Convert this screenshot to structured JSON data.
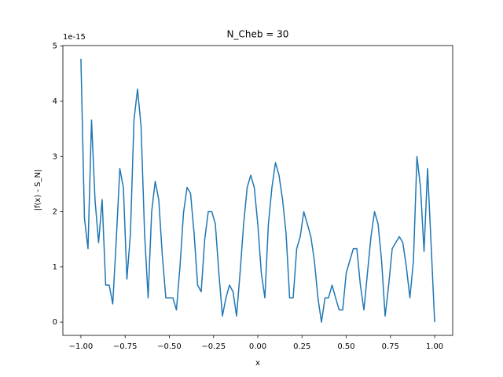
{
  "chart_data": {
    "type": "line",
    "title": "N_Cheb = 30",
    "x_label": "x",
    "y_label": "|f(x) - S_N|",
    "y_offset_text": "1e-15",
    "color": "#1f77b4",
    "x": [
      -1.0,
      -0.98,
      -0.96,
      -0.94,
      -0.92,
      -0.9,
      -0.88,
      -0.86,
      -0.84,
      -0.82,
      -0.8,
      -0.78,
      -0.76,
      -0.74,
      -0.72,
      -0.7,
      -0.68,
      -0.66,
      -0.64,
      -0.62,
      -0.6,
      -0.58,
      -0.56,
      -0.54,
      -0.52,
      -0.5,
      -0.48,
      -0.46,
      -0.44,
      -0.42,
      -0.4,
      -0.38,
      -0.36,
      -0.34,
      -0.32,
      -0.3,
      -0.28,
      -0.26,
      -0.24,
      -0.22,
      -0.2,
      -0.18,
      -0.16,
      -0.14,
      -0.12,
      -0.1,
      -0.08,
      -0.06,
      -0.04,
      -0.02,
      0,
      0.02,
      0.04,
      0.06,
      0.08,
      0.1,
      0.12,
      0.14,
      0.16,
      0.18,
      0.2,
      0.22,
      0.24,
      0.26,
      0.28,
      0.3,
      0.32,
      0.34,
      0.36,
      0.38,
      0.4,
      0.42,
      0.44,
      0.46,
      0.48,
      0.5,
      0.52,
      0.54,
      0.56,
      0.58,
      0.6,
      0.62,
      0.64,
      0.66,
      0.68,
      0.7,
      0.72,
      0.74,
      0.76,
      0.78,
      0.8,
      0.82,
      0.84,
      0.86,
      0.88,
      0.9,
      0.92,
      0.94,
      0.96,
      0.98,
      1.0
    ],
    "values": [
      4.77,
      1.88,
      1.33,
      3.66,
      2.2,
      1.44,
      2.22,
      0.67,
      0.67,
      0.33,
      1.5,
      2.78,
      2.44,
      0.78,
      1.6,
      3.66,
      4.22,
      3.55,
      1.6,
      0.44,
      2.0,
      2.55,
      2.22,
      1.22,
      0.44,
      0.44,
      0.44,
      0.22,
      1.0,
      1.98,
      2.44,
      2.33,
      1.6,
      0.67,
      0.55,
      1.5,
      2.0,
      2.0,
      1.78,
      0.89,
      0.11,
      0.44,
      0.67,
      0.55,
      0.11,
      0.9,
      1.78,
      2.44,
      2.66,
      2.44,
      1.78,
      0.89,
      0.44,
      1.78,
      2.44,
      2.89,
      2.66,
      2.22,
      1.6,
      0.44,
      0.44,
      1.33,
      1.55,
      2.0,
      1.78,
      1.55,
      1.11,
      0.44,
      0.0,
      0.44,
      0.44,
      0.67,
      0.44,
      0.22,
      0.22,
      0.89,
      1.11,
      1.33,
      1.33,
      0.67,
      0.22,
      0.89,
      1.55,
      2.0,
      1.78,
      1.11,
      0.11,
      0.67,
      1.33,
      1.44,
      1.55,
      1.44,
      1.0,
      0.44,
      1.11,
      3.0,
      2.44,
      1.28,
      2.78,
      1.4,
      0.0
    ],
    "xlim": [
      -1.102,
      1.102
    ],
    "ylim": [
      -0.24,
      5.01
    ],
    "xticks": [
      {
        "value": -1,
        "label": "−1.00"
      },
      {
        "value": -0.75,
        "label": "−0.75"
      },
      {
        "value": -0.5,
        "label": "−0.50"
      },
      {
        "value": -0.25,
        "label": "−0.25"
      },
      {
        "value": 0,
        "label": "0.00"
      },
      {
        "value": 0.25,
        "label": "0.25"
      },
      {
        "value": 0.5,
        "label": "0.50"
      },
      {
        "value": 0.75,
        "label": "0.75"
      },
      {
        "value": 1,
        "label": "1.00"
      }
    ],
    "yticks": [
      0,
      1,
      2,
      3,
      4,
      5
    ]
  }
}
